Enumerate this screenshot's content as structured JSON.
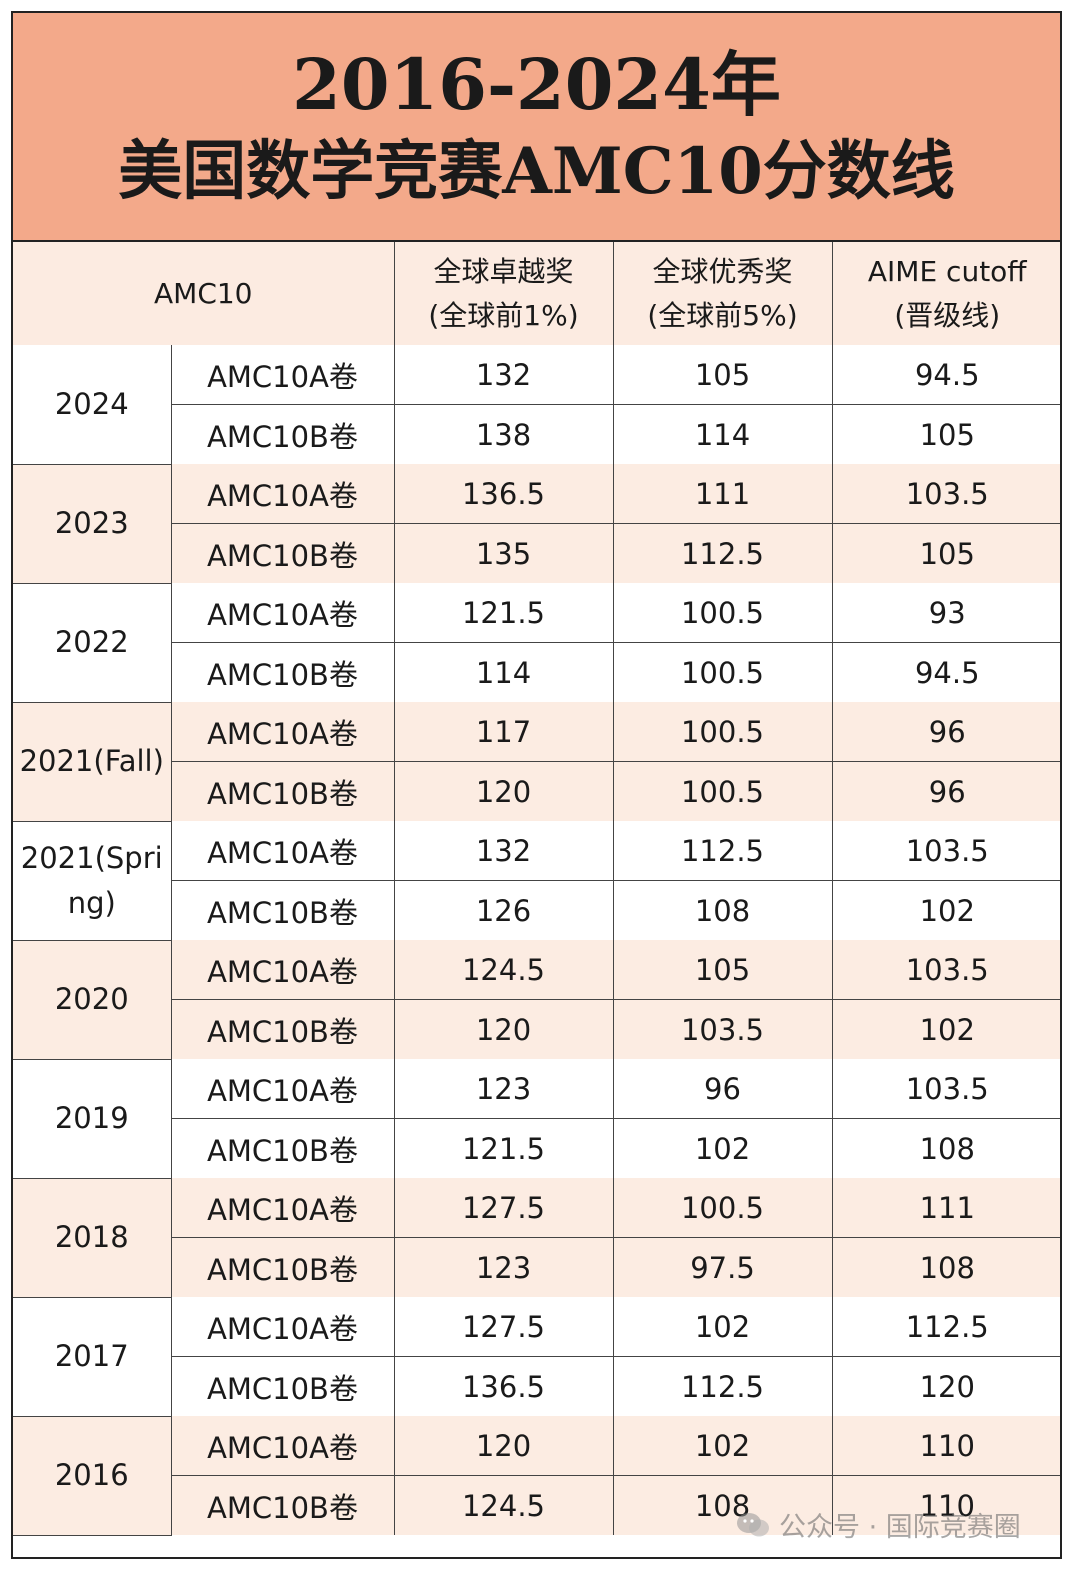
{
  "title": {
    "line1": "2016-2024年",
    "line2": "美国数学竞赛AMC10分数线"
  },
  "header": {
    "competition": "AMC10",
    "col1_line1": "全球卓越奖",
    "col1_line2": "(全球前1%)",
    "col2_line1": "全球优秀奖",
    "col2_line2": "(全球前5%)",
    "col3_line1": "AIME cutoff",
    "col3_line2": "(晋级线)"
  },
  "years": [
    {
      "year": "2024",
      "rows": [
        {
          "paper": "AMC10A卷",
          "distinction": "132",
          "merit": "105",
          "aime": "94.5"
        },
        {
          "paper": "AMC10B卷",
          "distinction": "138",
          "merit": "114",
          "aime": "105"
        }
      ]
    },
    {
      "year": "2023",
      "rows": [
        {
          "paper": "AMC10A卷",
          "distinction": "136.5",
          "merit": "111",
          "aime": "103.5"
        },
        {
          "paper": "AMC10B卷",
          "distinction": "135",
          "merit": "112.5",
          "aime": "105"
        }
      ]
    },
    {
      "year": "2022",
      "rows": [
        {
          "paper": "AMC10A卷",
          "distinction": "121.5",
          "merit": "100.5",
          "aime": "93"
        },
        {
          "paper": "AMC10B卷",
          "distinction": "114",
          "merit": "100.5",
          "aime": "94.5"
        }
      ]
    },
    {
      "year": "2021(Fall)",
      "rows": [
        {
          "paper": "AMC10A卷",
          "distinction": "117",
          "merit": "100.5",
          "aime": "96"
        },
        {
          "paper": "AMC10B卷",
          "distinction": "120",
          "merit": "100.5",
          "aime": "96"
        }
      ]
    },
    {
      "year": "2021(Spring)",
      "rows": [
        {
          "paper": "AMC10A卷",
          "distinction": "132",
          "merit": "112.5",
          "aime": "103.5"
        },
        {
          "paper": "AMC10B卷",
          "distinction": "126",
          "merit": "108",
          "aime": "102"
        }
      ]
    },
    {
      "year": "2020",
      "rows": [
        {
          "paper": "AMC10A卷",
          "distinction": "124.5",
          "merit": "105",
          "aime": "103.5"
        },
        {
          "paper": "AMC10B卷",
          "distinction": "120",
          "merit": "103.5",
          "aime": "102"
        }
      ]
    },
    {
      "year": "2019",
      "rows": [
        {
          "paper": "AMC10A卷",
          "distinction": "123",
          "merit": "96",
          "aime": "103.5"
        },
        {
          "paper": "AMC10B卷",
          "distinction": "121.5",
          "merit": "102",
          "aime": "108"
        }
      ]
    },
    {
      "year": "2018",
      "rows": [
        {
          "paper": "AMC10A卷",
          "distinction": "127.5",
          "merit": "100.5",
          "aime": "111"
        },
        {
          "paper": "AMC10B卷",
          "distinction": "123",
          "merit": "97.5",
          "aime": "108"
        }
      ]
    },
    {
      "year": "2017",
      "rows": [
        {
          "paper": "AMC10A卷",
          "distinction": "127.5",
          "merit": "102",
          "aime": "112.5"
        },
        {
          "paper": "AMC10B卷",
          "distinction": "136.5",
          "merit": "112.5",
          "aime": "120"
        }
      ]
    },
    {
      "year": "2016",
      "rows": [
        {
          "paper": "AMC10A卷",
          "distinction": "120",
          "merit": "102",
          "aime": "110"
        },
        {
          "paper": "AMC10B卷",
          "distinction": "124.5",
          "merit": "108",
          "aime": "110"
        }
      ]
    }
  ],
  "watermark": {
    "text": "公众号 · 国际竞赛圈",
    "icon": "wechat-official-account-icon"
  },
  "colors": {
    "title_bg": "#f3a98a",
    "header_bg": "#fcebe1",
    "band_tint": "#fcece2",
    "band_white": "#ffffff",
    "text": "#1a1a1a"
  }
}
